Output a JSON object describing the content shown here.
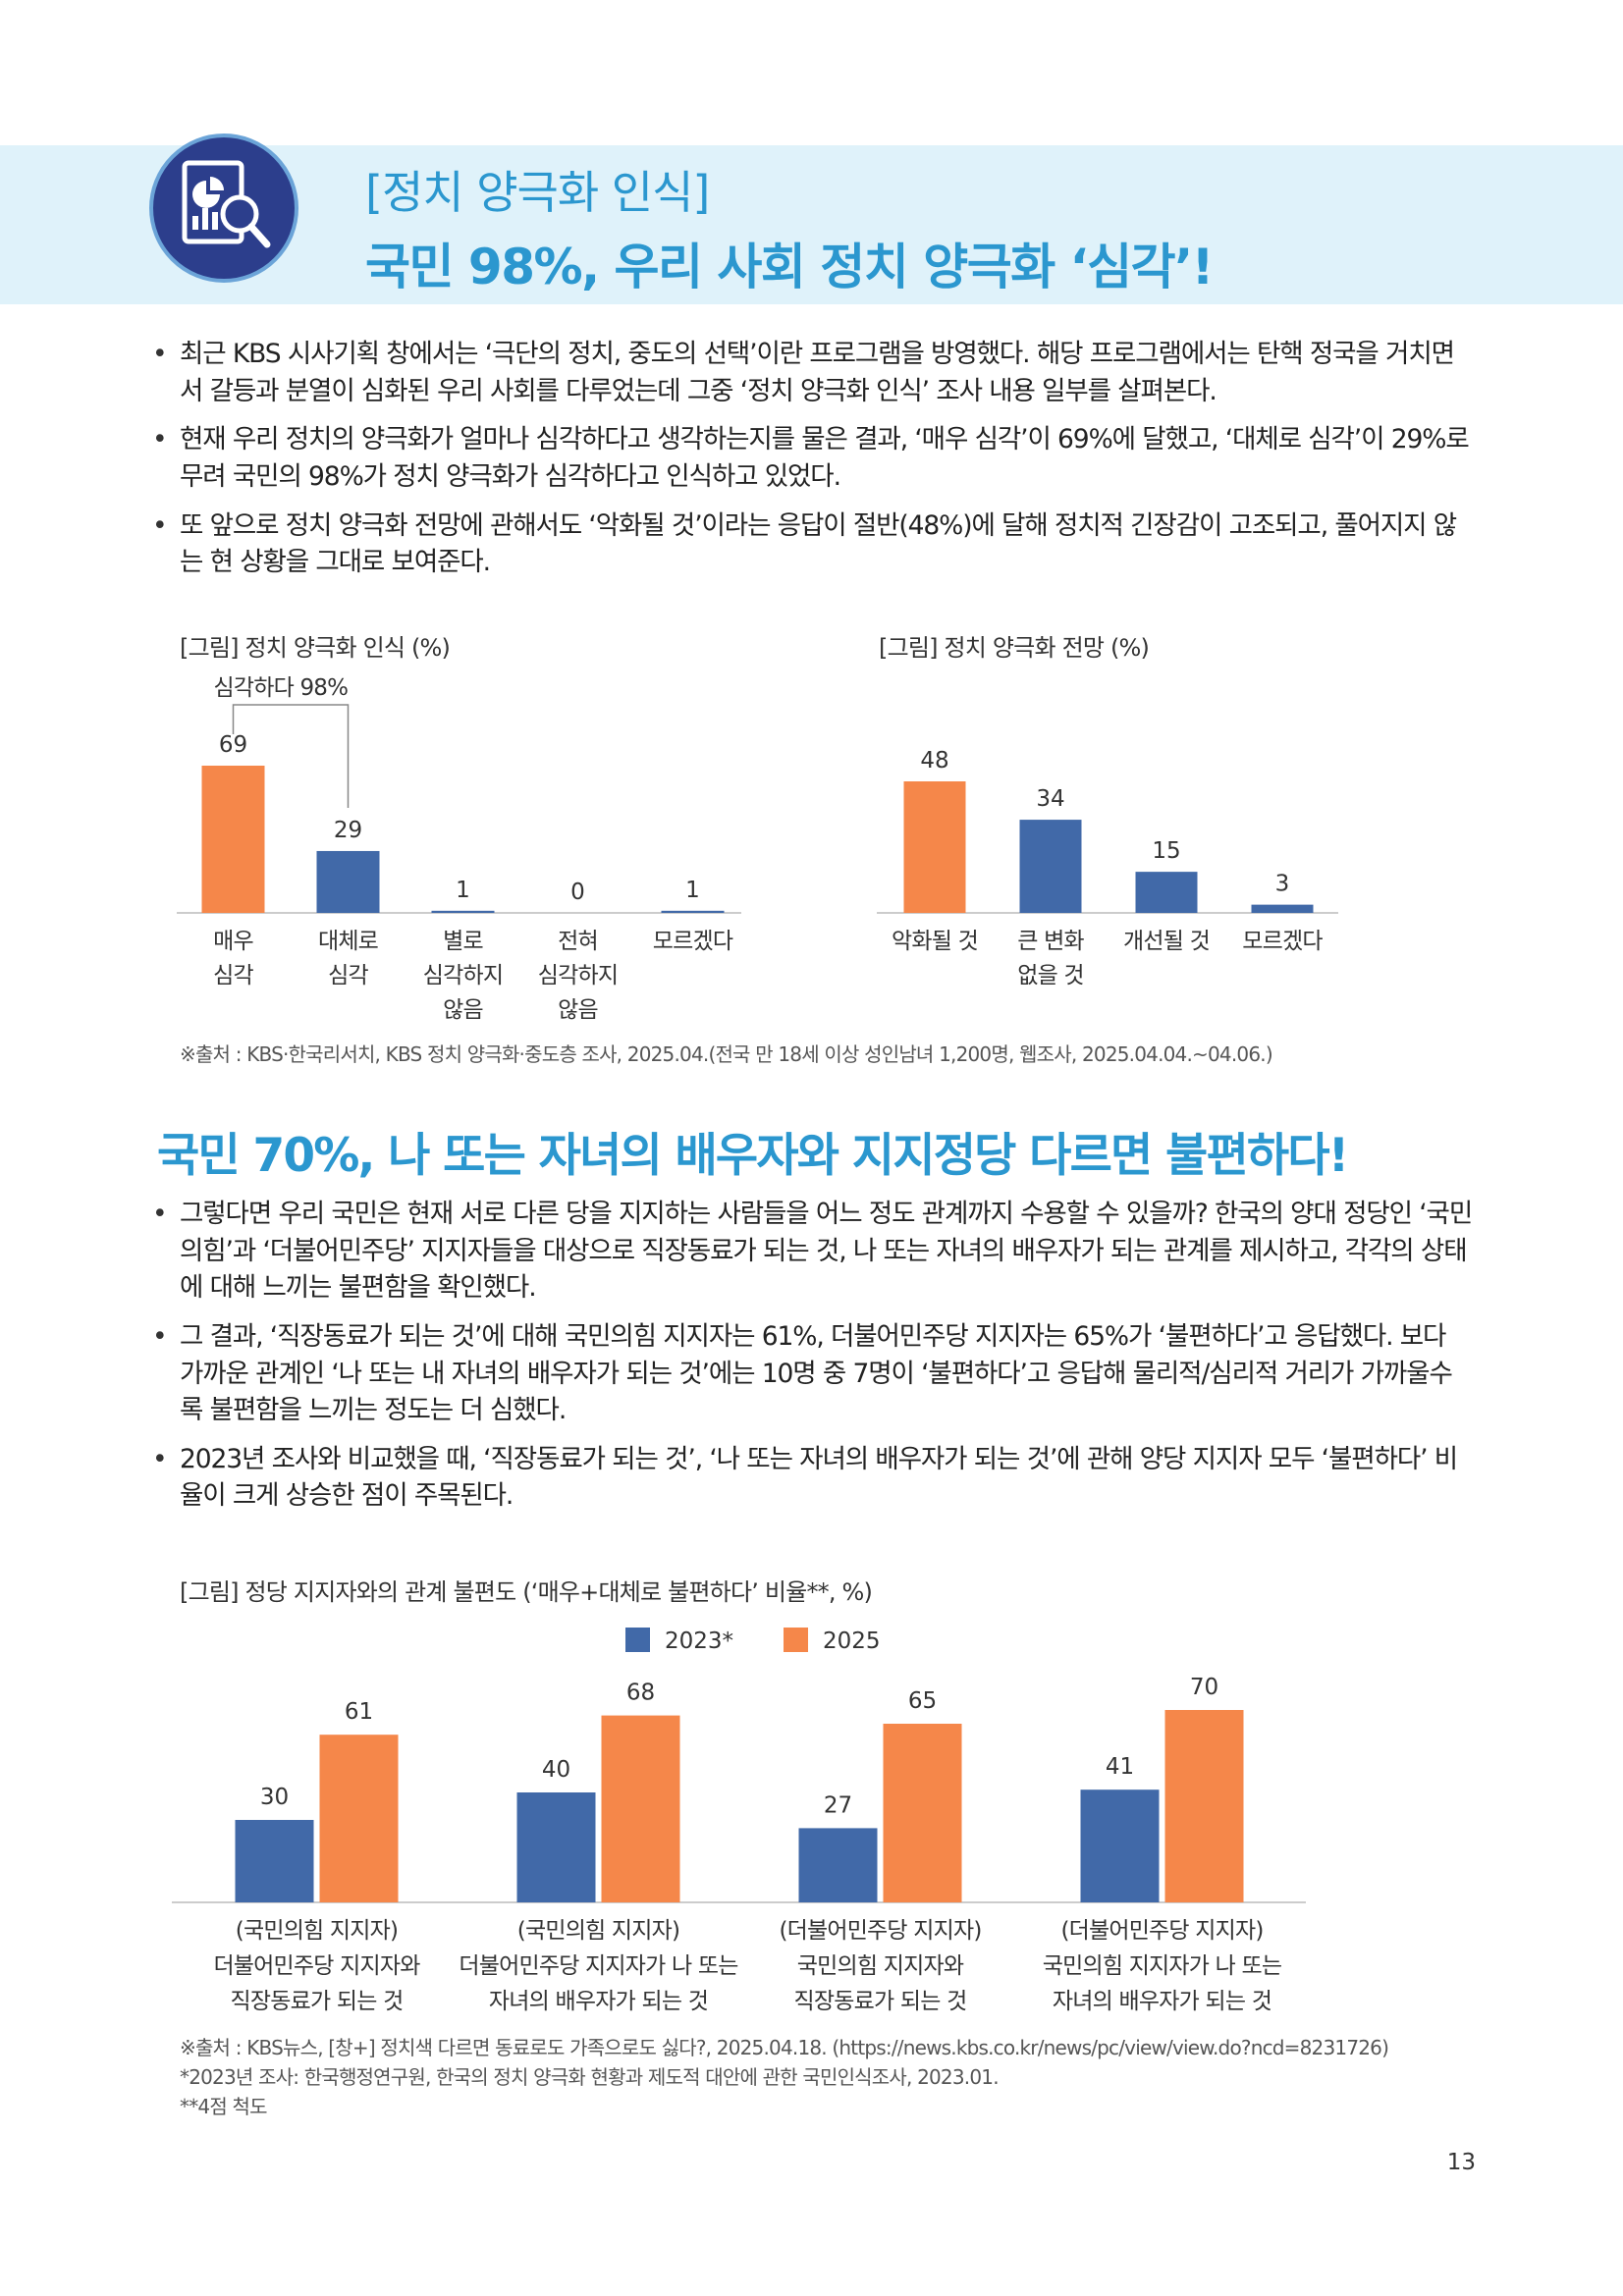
{
  "header": {
    "subtitle": "[정치 양극화 인식]",
    "title": "국민 98%, 우리 사회 정치 양극화 ‘심각’!"
  },
  "section1": {
    "bullets": [
      "최근 KBS 시사기획 창에서는 ‘극단의 정치, 중도의 선택’이란 프로그램을 방영했다. 해당 프로그램에서는 탄핵 정국을 거치면서 갈등과 분열이 심화된 우리 사회를 다루었는데 그중 ‘정치 양극화 인식’ 조사 내용 일부를 살펴본다.",
      "현재 우리 정치의 양극화가 얼마나 심각하다고 생각하는지를 물은 결과, ‘매우 심각’이 69%에 달했고, ‘대체로 심각’이 29%로 무려 국민의 98%가 정치 양극화가 심각하다고 인식하고 있었다.",
      "또 앞으로 정치 양극화 전망에 관해서도 ‘악화될 것’이라는 응답이 절반(48%)에 달해 정치적 긴장감이 고조되고, 풀어지지 않는 현 상황을 그대로 보여준다."
    ],
    "source": "※출처 : KBS·한국리서치, KBS 정치 양극화·중도층 조사, 2025.04.(전국 만 18세 이상 성인남녀 1,200명, 웹조사, 2025.04.04.~04.06.)"
  },
  "section2": {
    "title": "국민 70%, 나 또는 자녀의 배우자와 지지정당 다르면 불편하다!",
    "bullets": [
      "그렇다면 우리 국민은 현재 서로 다른 당을 지지하는 사람들을 어느 정도 관계까지 수용할 수 있을까? 한국의 양대 정당인 ‘국민의힘’과 ‘더불어민주당’ 지지자들을 대상으로 직장동료가 되는 것, 나 또는 자녀의 배우자가 되는 관계를 제시하고, 각각의 상태에 대해 느끼는 불편함을 확인했다.",
      "그 결과, ‘직장동료가 되는 것’에 대해 국민의힘 지지자는 61%, 더불어민주당 지지자는 65%가 ‘불편하다’고 응답했다. 보다 가까운 관계인 ‘나 또는 내 자녀의 배우자가 되는 것’에는 10명 중 7명이 ‘불편하다’고 응답해 물리적/심리적 거리가 가까울수록 불편함을 느끼는 정도는 더 심했다.",
      "2023년 조사와 비교했을 때, ‘직장동료가 되는 것’, ‘나 또는 자녀의 배우자가 되는 것’에 관해 양당 지지자 모두 ‘불편하다’ 비율이 크게 상승한 점이 주목된다."
    ],
    "sources": [
      "※출처 : KBS뉴스, [창+] 정치색 다르면 동료로도 가족으로도 싫다?, 2025.04.18. (https://news.kbs.co.kr/news/pc/view/view.do?ncd=8231726)",
      "*2023년 조사: 한국행정연구원, 한국의 정치 양극화 현황과 제도적 대안에 관한 국민인식조사, 2023.01.",
      "**4점 척도"
    ]
  },
  "page_number": "13",
  "colors": {
    "orange": "#f5874a",
    "blue": "#4169a8",
    "accent": "#2b97cf",
    "band": "#dff2fa"
  },
  "chart_data": [
    {
      "type": "bar",
      "title": "[그림] 정치 양극화 인식 (%)",
      "categories": [
        "매우\n심각",
        "대체로\n심각",
        "별로\n심각하지\n않음",
        "전혀\n심각하지\n않음",
        "모르겠다"
      ],
      "values": [
        69,
        29,
        1,
        0,
        1
      ],
      "bar_colors": [
        "#f5874a",
        "#4169a8",
        "#4169a8",
        "#4169a8",
        "#4169a8"
      ],
      "annotation": "심각하다 98%",
      "ylim": [
        0,
        69
      ]
    },
    {
      "type": "bar",
      "title": "[그림] 정치 양극화 전망 (%)",
      "categories": [
        "악화될 것",
        "큰 변화\n없을 것",
        "개선될 것",
        "모르겠다"
      ],
      "values": [
        48,
        34,
        15,
        3
      ],
      "bar_colors": [
        "#f5874a",
        "#4169a8",
        "#4169a8",
        "#4169a8"
      ],
      "ylim": [
        0,
        48
      ]
    },
    {
      "type": "bar",
      "title": "[그림] 정당 지지자와의 관계 불편도 (‘매우+대체로 불편하다’ 비율**, %)",
      "categories": [
        "(국민의힘 지지자)\n더불어민주당 지지자와\n직장동료가 되는 것",
        "(국민의힘 지지자)\n더불어민주당 지지자가 나 또는\n자녀의 배우자가 되는 것",
        "(더불어민주당 지지자)\n국민의힘 지지자와\n직장동료가 되는 것",
        "(더불어민주당 지지자)\n국민의힘 지지자가 나 또는\n자녀의 배우자가 되는 것"
      ],
      "series": [
        {
          "name": "2023*",
          "values": [
            30,
            40,
            27,
            41
          ],
          "color": "#4169a8"
        },
        {
          "name": "2025",
          "values": [
            61,
            68,
            65,
            70
          ],
          "color": "#f5874a"
        }
      ],
      "legend": "top-center",
      "ylim": [
        0,
        70
      ]
    }
  ]
}
